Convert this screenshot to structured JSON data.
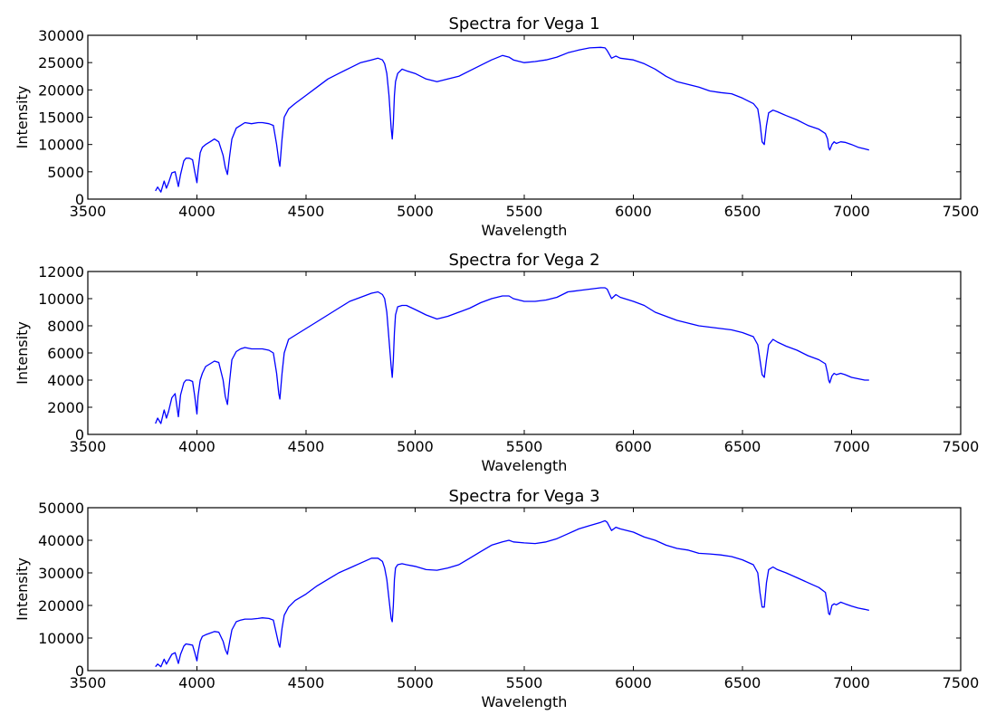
{
  "figure": {
    "background": "#ffffff",
    "line_color": "#0000ff"
  },
  "chart_data": [
    {
      "type": "line",
      "title": "Spectra for Vega 1",
      "xlabel": "Wavelength",
      "ylabel": "Intensity",
      "xlim": [
        3500,
        7500
      ],
      "ylim": [
        0,
        30000
      ],
      "xticks": [
        "3500",
        "4000",
        "4500",
        "5000",
        "5500",
        "6000",
        "6500",
        "7000",
        "7500"
      ],
      "yticks": [
        "0",
        "5000",
        "10000",
        "15000",
        "20000",
        "25000",
        "30000"
      ],
      "grid": false,
      "series": [
        {
          "x": [
            3810,
            3820,
            3835,
            3850,
            3860,
            3870,
            3885,
            3900,
            3915,
            3925,
            3940,
            3950,
            3965,
            3980,
            3990,
            4000,
            4005,
            4015,
            4025,
            4040,
            4060,
            4080,
            4100,
            4120,
            4130,
            4140,
            4150,
            4160,
            4180,
            4200,
            4220,
            4250,
            4280,
            4300,
            4330,
            4350,
            4365,
            4375,
            4380,
            4390,
            4400,
            4420,
            4450,
            4500,
            4550,
            4600,
            4650,
            4700,
            4750,
            4800,
            4830,
            4850,
            4860,
            4870,
            4880,
            4890,
            4895,
            4900,
            4905,
            4910,
            4920,
            4940,
            4960,
            5000,
            5050,
            5100,
            5150,
            5200,
            5250,
            5300,
            5350,
            5400,
            5430,
            5450,
            5500,
            5550,
            5600,
            5650,
            5700,
            5750,
            5800,
            5850,
            5870,
            5880,
            5900,
            5920,
            5940,
            6000,
            6050,
            6100,
            6150,
            6200,
            6250,
            6300,
            6350,
            6400,
            6450,
            6500,
            6550,
            6570,
            6580,
            6590,
            6600,
            6610,
            6620,
            6640,
            6660,
            6700,
            6750,
            6800,
            6850,
            6880,
            6890,
            6895,
            6900,
            6910,
            6920,
            6930,
            6950,
            6970,
            7000,
            7030,
            7060,
            7080
          ],
          "y": [
            1500,
            2200,
            1300,
            3300,
            2000,
            3000,
            4800,
            5000,
            2300,
            4500,
            7000,
            7500,
            7500,
            7200,
            5000,
            3000,
            5200,
            8500,
            9500,
            10000,
            10500,
            11000,
            10500,
            8000,
            5800,
            4500,
            8000,
            11000,
            13000,
            13500,
            14000,
            13800,
            14000,
            14000,
            13800,
            13500,
            10000,
            7000,
            6000,
            11000,
            15000,
            16500,
            17500,
            19000,
            20500,
            22000,
            23000,
            24000,
            25000,
            25500,
            25800,
            25500,
            24800,
            23000,
            19000,
            13000,
            11000,
            14000,
            19000,
            21500,
            23000,
            23800,
            23500,
            23000,
            22000,
            21500,
            22000,
            22500,
            23500,
            24500,
            25500,
            26300,
            26000,
            25500,
            25000,
            25200,
            25500,
            26000,
            26800,
            27300,
            27700,
            27800,
            27700,
            27200,
            25800,
            26200,
            25800,
            25500,
            24800,
            23800,
            22500,
            21500,
            21000,
            20500,
            19800,
            19500,
            19300,
            18500,
            17500,
            16500,
            14000,
            10500,
            10000,
            13500,
            15800,
            16300,
            16000,
            15300,
            14500,
            13500,
            12800,
            12000,
            11000,
            9500,
            9000,
            10000,
            10500,
            10200,
            10500,
            10400,
            10000,
            9500,
            9200,
            9000
          ]
        }
      ]
    },
    {
      "type": "line",
      "title": "Spectra for Vega 2",
      "xlabel": "Wavelength",
      "ylabel": "Intensity",
      "xlim": [
        3500,
        7500
      ],
      "ylim": [
        0,
        12000
      ],
      "xticks": [
        "3500",
        "4000",
        "4500",
        "5000",
        "5500",
        "6000",
        "6500",
        "7000",
        "7500"
      ],
      "yticks": [
        "0",
        "2000",
        "4000",
        "6000",
        "8000",
        "10000",
        "12000"
      ],
      "grid": false,
      "series": [
        {
          "x": [
            3810,
            3820,
            3835,
            3850,
            3860,
            3870,
            3885,
            3900,
            3915,
            3925,
            3940,
            3950,
            3965,
            3980,
            3990,
            4000,
            4005,
            4015,
            4025,
            4040,
            4060,
            4080,
            4100,
            4120,
            4130,
            4140,
            4150,
            4160,
            4180,
            4200,
            4220,
            4250,
            4280,
            4300,
            4330,
            4350,
            4365,
            4375,
            4380,
            4390,
            4400,
            4420,
            4450,
            4500,
            4550,
            4600,
            4650,
            4700,
            4750,
            4800,
            4830,
            4850,
            4860,
            4870,
            4880,
            4890,
            4895,
            4900,
            4905,
            4910,
            4920,
            4940,
            4960,
            5000,
            5050,
            5100,
            5150,
            5200,
            5250,
            5300,
            5350,
            5400,
            5430,
            5450,
            5500,
            5550,
            5600,
            5650,
            5700,
            5750,
            5800,
            5850,
            5870,
            5880,
            5900,
            5920,
            5940,
            6000,
            6050,
            6100,
            6150,
            6200,
            6250,
            6300,
            6350,
            6400,
            6450,
            6500,
            6550,
            6570,
            6580,
            6590,
            6600,
            6610,
            6620,
            6640,
            6660,
            6700,
            6750,
            6800,
            6850,
            6880,
            6890,
            6895,
            6900,
            6910,
            6920,
            6930,
            6950,
            6970,
            7000,
            7030,
            7060,
            7080
          ],
          "y": [
            800,
            1200,
            800,
            1800,
            1200,
            1700,
            2700,
            3000,
            1300,
            2900,
            3800,
            4000,
            4000,
            3900,
            2800,
            1500,
            2800,
            4000,
            4500,
            5000,
            5200,
            5400,
            5300,
            4000,
            2800,
            2200,
            4000,
            5500,
            6100,
            6300,
            6400,
            6300,
            6300,
            6300,
            6200,
            6000,
            4500,
            3000,
            2600,
            4500,
            6000,
            7000,
            7300,
            7800,
            8300,
            8800,
            9300,
            9800,
            10100,
            10400,
            10500,
            10300,
            10000,
            9000,
            7000,
            5000,
            4200,
            5500,
            7500,
            8800,
            9400,
            9500,
            9500,
            9200,
            8800,
            8500,
            8700,
            9000,
            9300,
            9700,
            10000,
            10200,
            10200,
            10000,
            9800,
            9800,
            9900,
            10100,
            10500,
            10600,
            10700,
            10800,
            10800,
            10700,
            10000,
            10300,
            10100,
            9800,
            9500,
            9000,
            8700,
            8400,
            8200,
            8000,
            7900,
            7800,
            7700,
            7500,
            7200,
            6600,
            5500,
            4400,
            4200,
            5500,
            6600,
            7000,
            6800,
            6500,
            6200,
            5800,
            5500,
            5200,
            4500,
            4000,
            3800,
            4300,
            4500,
            4400,
            4500,
            4400,
            4200,
            4100,
            4000,
            4000
          ]
        }
      ]
    },
    {
      "type": "line",
      "title": "Spectra for Vega 3",
      "xlabel": "Wavelength",
      "ylabel": "Intensity",
      "xlim": [
        3500,
        7500
      ],
      "ylim": [
        0,
        50000
      ],
      "xticks": [
        "3500",
        "4000",
        "4500",
        "5000",
        "5500",
        "6000",
        "6500",
        "7000",
        "7500"
      ],
      "yticks": [
        "0",
        "10000",
        "20000",
        "30000",
        "40000",
        "50000"
      ],
      "grid": false,
      "series": [
        {
          "x": [
            3810,
            3820,
            3835,
            3850,
            3860,
            3870,
            3885,
            3900,
            3915,
            3925,
            3940,
            3950,
            3965,
            3980,
            3990,
            4000,
            4005,
            4015,
            4025,
            4040,
            4060,
            4080,
            4100,
            4120,
            4130,
            4140,
            4150,
            4160,
            4180,
            4200,
            4220,
            4250,
            4280,
            4300,
            4330,
            4350,
            4365,
            4375,
            4380,
            4390,
            4400,
            4420,
            4450,
            4500,
            4550,
            4600,
            4650,
            4700,
            4750,
            4800,
            4830,
            4850,
            4860,
            4870,
            4880,
            4890,
            4895,
            4900,
            4905,
            4910,
            4920,
            4940,
            4960,
            5000,
            5050,
            5100,
            5150,
            5200,
            5250,
            5300,
            5350,
            5400,
            5430,
            5450,
            5500,
            5550,
            5600,
            5650,
            5700,
            5750,
            5800,
            5850,
            5870,
            5880,
            5900,
            5920,
            5940,
            6000,
            6050,
            6100,
            6150,
            6200,
            6250,
            6300,
            6350,
            6400,
            6450,
            6500,
            6550,
            6570,
            6580,
            6590,
            6600,
            6610,
            6620,
            6640,
            6660,
            6700,
            6750,
            6800,
            6850,
            6880,
            6890,
            6895,
            6900,
            6910,
            6920,
            6930,
            6950,
            6970,
            7000,
            7030,
            7060,
            7080
          ],
          "y": [
            1200,
            2000,
            1200,
            3500,
            2000,
            3200,
            5000,
            5500,
            2200,
            5000,
            7500,
            8200,
            8000,
            7800,
            5500,
            3000,
            5500,
            9000,
            10500,
            11000,
            11500,
            12000,
            11800,
            9000,
            6500,
            5000,
            9000,
            12500,
            15000,
            15500,
            15800,
            15800,
            16000,
            16200,
            16000,
            15500,
            11000,
            8000,
            7200,
            13000,
            17000,
            19500,
            21500,
            23500,
            26000,
            28000,
            30000,
            31500,
            33000,
            34500,
            34500,
            33500,
            31500,
            28000,
            22000,
            16000,
            15000,
            20000,
            28000,
            31500,
            32500,
            32800,
            32500,
            32000,
            31000,
            30800,
            31500,
            32500,
            34500,
            36500,
            38500,
            39500,
            40000,
            39500,
            39200,
            39000,
            39500,
            40500,
            42000,
            43500,
            44500,
            45500,
            46000,
            45500,
            43000,
            44000,
            43500,
            42500,
            41000,
            40000,
            38500,
            37500,
            37000,
            36000,
            35800,
            35500,
            35000,
            34000,
            32500,
            30000,
            24000,
            19500,
            19500,
            27000,
            31000,
            31800,
            31000,
            30000,
            28500,
            27000,
            25500,
            24000,
            20000,
            17500,
            17200,
            20000,
            20500,
            20200,
            21000,
            20500,
            19800,
            19200,
            18800,
            18500
          ]
        }
      ]
    }
  ]
}
